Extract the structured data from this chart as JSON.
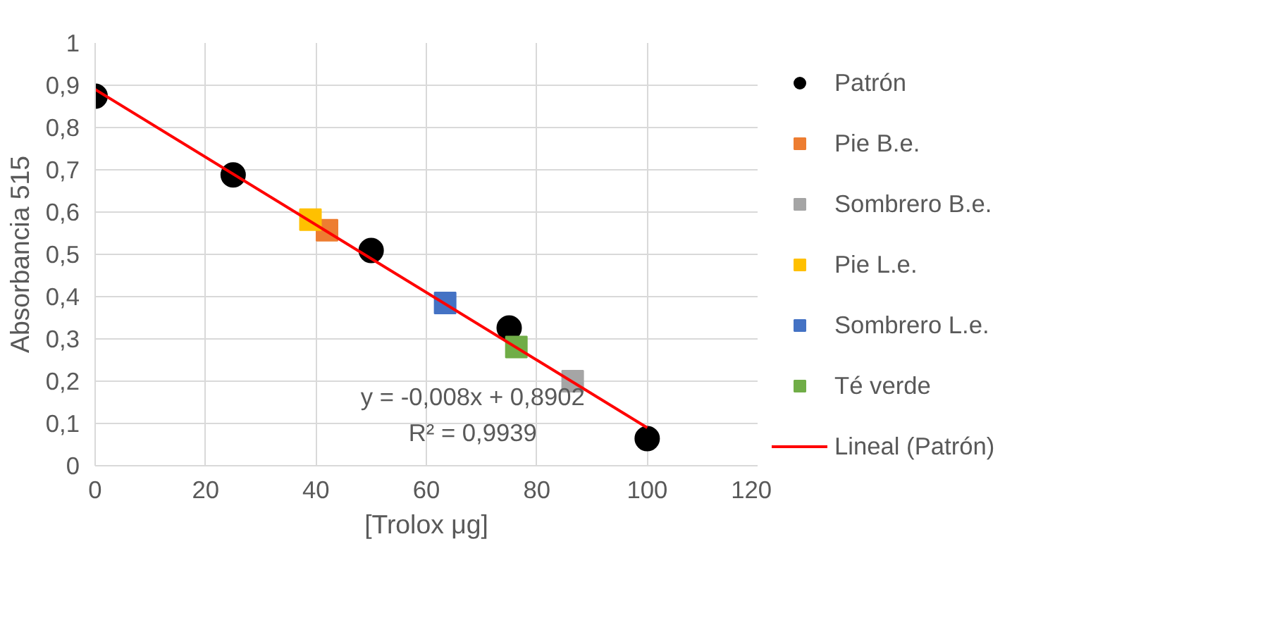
{
  "chart_data": {
    "type": "scatter",
    "xlabel": "[Trolox μg]",
    "ylabel": "Absorbancia 515",
    "xlim": [
      0,
      120
    ],
    "xticks": [
      0,
      20,
      40,
      60,
      80,
      100,
      120
    ],
    "ylim": [
      0,
      1
    ],
    "yticks": [
      0,
      {
        "value": 0.1,
        "label": "0,1"
      },
      {
        "value": 0.2,
        "label": "0,2"
      },
      {
        "value": 0.3,
        "label": "0,3"
      },
      {
        "value": 0.4,
        "label": "0,4"
      },
      {
        "value": 0.5,
        "label": "0,5"
      },
      {
        "value": 0.6,
        "label": "0,6"
      },
      {
        "value": 0.7,
        "label": "0,7"
      },
      {
        "value": 0.8,
        "label": "0,8"
      },
      {
        "value": 0.9,
        "label": "0,9"
      },
      1
    ],
    "grid": true,
    "legend": "right",
    "series": [
      {
        "name": "Patrón",
        "color": "#000000",
        "marker": "circle",
        "x": [
          0,
          25,
          50,
          75,
          100
        ],
        "values": [
          0.874,
          0.688,
          0.509,
          0.326,
          0.064
        ]
      },
      {
        "name": "Pie B.e.",
        "color": "#ed7d31",
        "marker": "square",
        "x": [
          42
        ],
        "values": [
          0.557
        ]
      },
      {
        "name": "Sombrero B.e.",
        "color": "#a5a5a5",
        "marker": "square",
        "x": [
          86.5
        ],
        "values": [
          0.2
        ]
      },
      {
        "name": "Pie L.e.",
        "color": "#ffc000",
        "marker": "square",
        "x": [
          39
        ],
        "values": [
          0.582
        ]
      },
      {
        "name": "Sombrero L.e.",
        "color": "#4472c4",
        "marker": "square",
        "x": [
          63.4
        ],
        "values": [
          0.385
        ]
      },
      {
        "name": "Té verde",
        "color": "#70ad47",
        "marker": "square",
        "x": [
          76.3
        ],
        "values": [
          0.281
        ]
      },
      {
        "name": "Lineal (Patrón)",
        "type": "line",
        "color": "#ff0000",
        "marker": "none",
        "x": [
          0,
          100
        ],
        "values": [
          0.89,
          0.09
        ]
      }
    ],
    "annotations": [
      "y = -0,008x + 0,8902",
      "R² = 0,9939"
    ]
  }
}
